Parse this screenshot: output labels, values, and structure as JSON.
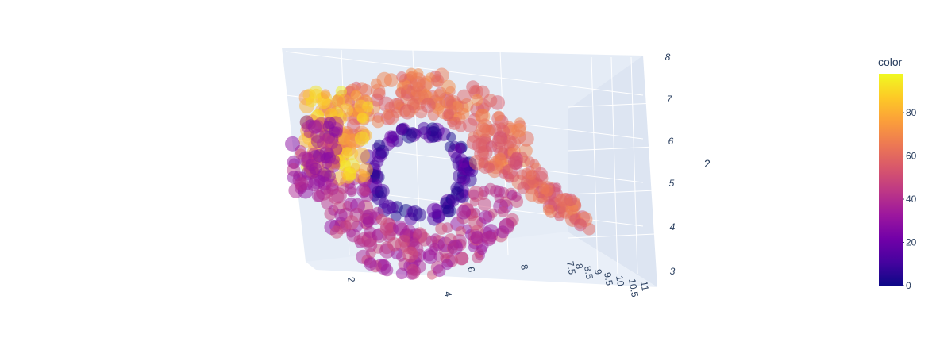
{
  "chart_data": {
    "type": "scatter3d",
    "title": "",
    "axes": {
      "x": {
        "label": "",
        "ticks": [
          "2",
          "4",
          "6",
          "8"
        ]
      },
      "y": {
        "label": "",
        "ticks": [
          "7.5",
          "8",
          "8.5",
          "9",
          "9.5",
          "10",
          "10.5",
          "11"
        ]
      },
      "z": {
        "label": "2",
        "ticks": [
          "3",
          "4",
          "5",
          "6",
          "7",
          "8"
        ]
      }
    },
    "colorbar": {
      "title": "color",
      "ticks": [
        "0",
        "20",
        "40",
        "60",
        "80"
      ],
      "range": [
        0,
        98
      ],
      "colorscale": [
        "#0d0887",
        "#46039f",
        "#7201a8",
        "#9c179e",
        "#bd3786",
        "#d8576b",
        "#ed7953",
        "#fb9f3a",
        "#fdca26",
        "#f0f921"
      ]
    },
    "point_groups": [
      {
        "region": "ring-upper",
        "color_range": [
          55,
          72
        ]
      },
      {
        "region": "ring-inner",
        "color_range": [
          0,
          22
        ]
      },
      {
        "region": "ring-lower",
        "color_range": [
          30,
          52
        ]
      },
      {
        "region": "left-cap",
        "color_range": [
          70,
          98
        ]
      },
      {
        "region": "left-edge",
        "color_range": [
          25,
          45
        ]
      },
      {
        "region": "tail",
        "color_range": [
          50,
          68
        ]
      }
    ],
    "marker_opacity": 0.5,
    "grid": true,
    "legend": "colorbar-right"
  }
}
